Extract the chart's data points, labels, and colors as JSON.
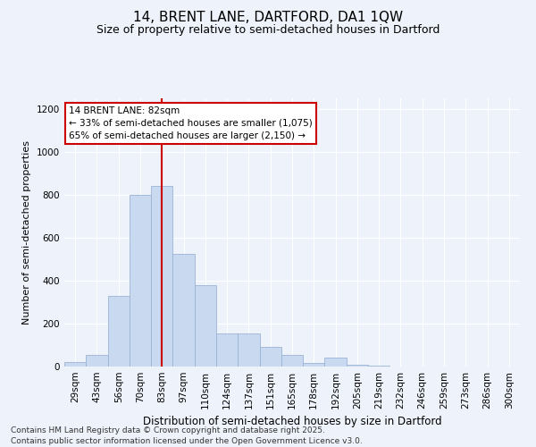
{
  "title1": "14, BRENT LANE, DARTFORD, DA1 1QW",
  "title2": "Size of property relative to semi-detached houses in Dartford",
  "xlabel": "Distribution of semi-detached houses by size in Dartford",
  "ylabel": "Number of semi-detached properties",
  "categories": [
    "29sqm",
    "43sqm",
    "56sqm",
    "70sqm",
    "83sqm",
    "97sqm",
    "110sqm",
    "124sqm",
    "137sqm",
    "151sqm",
    "165sqm",
    "178sqm",
    "192sqm",
    "205sqm",
    "219sqm",
    "232sqm",
    "246sqm",
    "259sqm",
    "273sqm",
    "286sqm",
    "300sqm"
  ],
  "values": [
    20,
    55,
    330,
    800,
    840,
    525,
    380,
    155,
    155,
    90,
    55,
    15,
    40,
    10,
    5,
    0,
    0,
    0,
    0,
    0,
    0
  ],
  "bar_color": "#c9d9ef",
  "bar_edge_color": "#9ab4d4",
  "vline_x_index": 4,
  "vline_color": "#cc0000",
  "annotation_title": "14 BRENT LANE: 82sqm",
  "annotation_line1": "← 33% of semi-detached houses are smaller (1,075)",
  "annotation_line2": "65% of semi-detached houses are larger (2,150) →",
  "annotation_box_color": "#cc0000",
  "ylim": [
    0,
    1250
  ],
  "yticks": [
    0,
    200,
    400,
    600,
    800,
    1000,
    1200
  ],
  "footer1": "Contains HM Land Registry data © Crown copyright and database right 2025.",
  "footer2": "Contains public sector information licensed under the Open Government Licence v3.0.",
  "bg_color": "#eef2fa",
  "grid_color": "#ffffff",
  "title1_fontsize": 11,
  "title2_fontsize": 9,
  "xlabel_fontsize": 8.5,
  "ylabel_fontsize": 8,
  "tick_fontsize": 7.5,
  "footer_fontsize": 6.5,
  "ann_fontsize": 7.5
}
